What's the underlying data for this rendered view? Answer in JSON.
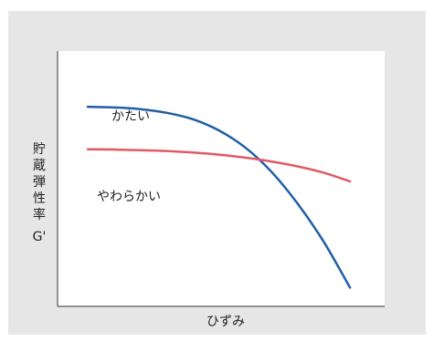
{
  "chart_data": {
    "type": "line",
    "title": "",
    "xlabel": "ひずみ",
    "ylabel_chars": [
      "貯",
      "蔵",
      "弾",
      "性",
      "率"
    ],
    "ylabel_symbol": "G'",
    "series": [
      {
        "name": "かたい",
        "color": "#1f5fa6",
        "x": [
          0.0,
          0.1,
          0.2,
          0.3,
          0.4,
          0.5,
          0.6,
          0.7,
          0.8,
          0.9,
          1.0
        ],
        "values": [
          0.688,
          0.685,
          0.677,
          0.66,
          0.63,
          0.577,
          0.497,
          0.383,
          0.233,
          0.053,
          -0.162
        ]
      },
      {
        "name": "やわらかい",
        "color": "#e05a64",
        "x": [
          0.0,
          0.1,
          0.2,
          0.3,
          0.4,
          0.5,
          0.6,
          0.7,
          0.8,
          0.9,
          1.0
        ],
        "values": [
          0.488,
          0.487,
          0.484,
          0.48,
          0.473,
          0.463,
          0.449,
          0.431,
          0.408,
          0.378,
          0.337
        ]
      }
    ],
    "xlim": [
      -0.115,
      1.132
    ],
    "ylim": [
      -0.25,
      0.95
    ],
    "grid": false,
    "legend": "inline-labels"
  }
}
